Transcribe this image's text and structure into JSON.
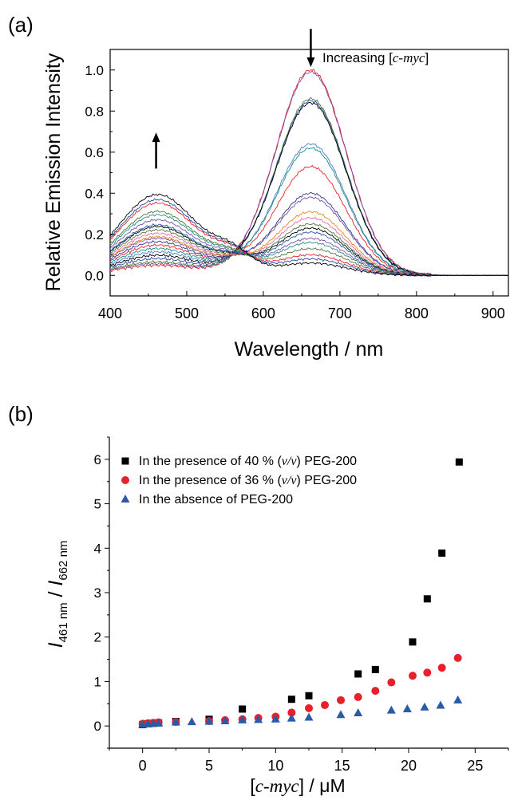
{
  "chart_data": [
    {
      "panel_label": "(a)",
      "type": "line",
      "xlabel": "Wavelength / nm",
      "ylabel": "Relative Emission Intensity",
      "xlim": [
        400,
        920
      ],
      "ylim": [
        -0.1,
        1.1
      ],
      "xticks": [
        "400",
        "500",
        "600",
        "700",
        "800",
        "900"
      ],
      "yticks": [
        "0.0",
        "0.2",
        "0.4",
        "0.6",
        "0.8",
        "1.0"
      ],
      "annotation": {
        "prefix": "Increasing [",
        "italic": "c-myc",
        "suffix": "]"
      },
      "arrows": [
        {
          "direction": "up",
          "x": 460,
          "y_from": 0.52,
          "y_to": 0.68
        },
        {
          "direction": "down",
          "x": 662,
          "y_from": 1.2,
          "y_to": 1.03
        }
      ],
      "grid": false,
      "legend": "none",
      "series": [
        {
          "color": "#e8202a",
          "peak_blue": 0.06,
          "peak_red": 1.0
        },
        {
          "color": "#7b4fa3",
          "peak_blue": 0.07,
          "peak_red": 0.99
        },
        {
          "color": "#4a7a3a",
          "peak_blue": 0.08,
          "peak_red": 0.86
        },
        {
          "color": "#2a4aa8",
          "peak_blue": 0.1,
          "peak_red": 0.85
        },
        {
          "color": "#000000",
          "peak_blue": 0.12,
          "peak_red": 0.84
        },
        {
          "color": "#4a7fbf",
          "peak_blue": 0.14,
          "peak_red": 0.64
        },
        {
          "color": "#1f8a8a",
          "peak_blue": 0.16,
          "peak_red": 0.62
        },
        {
          "color": "#e8202a",
          "peak_blue": 0.18,
          "peak_red": 0.53
        },
        {
          "color": "#2a3a8a",
          "peak_blue": 0.2,
          "peak_red": 0.4
        },
        {
          "color": "#7b4fa3",
          "peak_blue": 0.22,
          "peak_red": 0.38
        },
        {
          "color": "#e08a2a",
          "peak_blue": 0.23,
          "peak_red": 0.31
        },
        {
          "color": "#e86aa8",
          "peak_blue": 0.25,
          "peak_red": 0.28
        },
        {
          "color": "#4a7a3a",
          "peak_blue": 0.27,
          "peak_red": 0.25
        },
        {
          "color": "#000000",
          "peak_blue": 0.29,
          "peak_red": 0.23
        },
        {
          "color": "#1f5aa8",
          "peak_blue": 0.3,
          "peak_red": 0.21
        },
        {
          "color": "#7b4fa3",
          "peak_blue": 0.33,
          "peak_red": 0.18
        },
        {
          "color": "#2a8a8a",
          "peak_blue": 0.36,
          "peak_red": 0.16
        },
        {
          "color": "#4a7a3a",
          "peak_blue": 0.38,
          "peak_red": 0.13
        },
        {
          "color": "#e8202a",
          "peak_blue": 0.43,
          "peak_red": 0.1
        },
        {
          "color": "#2a4aa8",
          "peak_blue": 0.45,
          "peak_red": 0.08
        },
        {
          "color": "#000000",
          "peak_blue": 0.48,
          "peak_red": 0.06
        }
      ]
    },
    {
      "panel_label": "(b)",
      "type": "scatter",
      "ylabel": {
        "main": "I",
        "sub1": "461 nm",
        "sep": " / ",
        "main2": "I",
        "sub2": "662 nm"
      },
      "xlabel": {
        "prefix": "[",
        "italic": "c-myc",
        "suffix": "] / μM"
      },
      "xlim": [
        -2.5,
        27.5
      ],
      "ylim": [
        -0.5,
        6.5
      ],
      "xticks": [
        "0",
        "5",
        "10",
        "15",
        "20",
        "25"
      ],
      "yticks": [
        "0",
        "1",
        "2",
        "3",
        "4",
        "5",
        "6"
      ],
      "grid": false,
      "legend": "top-left",
      "series": [
        {
          "name": {
            "prefix": "In the presence of 40 % (",
            "italic": "v/v",
            "suffix": ") PEG-200"
          },
          "marker": "square",
          "color": "#000000",
          "x": [
            0,
            0.4,
            0.8,
            1.2,
            2.5,
            5.0,
            7.5,
            11.2,
            12.5,
            16.2,
            17.5,
            20.3,
            21.4,
            22.5,
            23.8
          ],
          "y": [
            0.03,
            0.05,
            0.06,
            0.07,
            0.1,
            0.15,
            0.38,
            0.6,
            0.68,
            1.17,
            1.27,
            1.89,
            2.86,
            3.89,
            5.94
          ]
        },
        {
          "name": {
            "prefix": "In the presence of 36 % (",
            "italic": "v/v",
            "suffix": ") PEG-200"
          },
          "marker": "circle",
          "color": "#e8202a",
          "x": [
            0,
            0.4,
            0.8,
            1.2,
            2.5,
            5.0,
            6.2,
            7.5,
            8.7,
            10.0,
            11.2,
            12.5,
            13.7,
            14.9,
            16.2,
            17.5,
            18.7,
            20.3,
            21.4,
            22.5,
            23.7
          ],
          "y": [
            0.05,
            0.06,
            0.07,
            0.08,
            0.09,
            0.11,
            0.13,
            0.15,
            0.18,
            0.21,
            0.3,
            0.4,
            0.47,
            0.58,
            0.65,
            0.79,
            0.98,
            1.13,
            1.2,
            1.31,
            1.53
          ]
        },
        {
          "name": {
            "prefix": "In the absence of PEG-200",
            "italic": "",
            "suffix": ""
          },
          "marker": "triangle",
          "color": "#2a5aa8",
          "x": [
            0,
            0.4,
            0.8,
            1.2,
            2.5,
            3.7,
            5.0,
            6.2,
            7.5,
            8.7,
            10.0,
            11.2,
            12.5,
            14.9,
            16.2,
            18.7,
            19.9,
            21.2,
            22.4,
            23.7
          ],
          "y": [
            0.03,
            0.04,
            0.05,
            0.06,
            0.08,
            0.09,
            0.1,
            0.11,
            0.13,
            0.14,
            0.15,
            0.17,
            0.19,
            0.25,
            0.29,
            0.35,
            0.38,
            0.42,
            0.46,
            0.58
          ]
        }
      ]
    }
  ]
}
